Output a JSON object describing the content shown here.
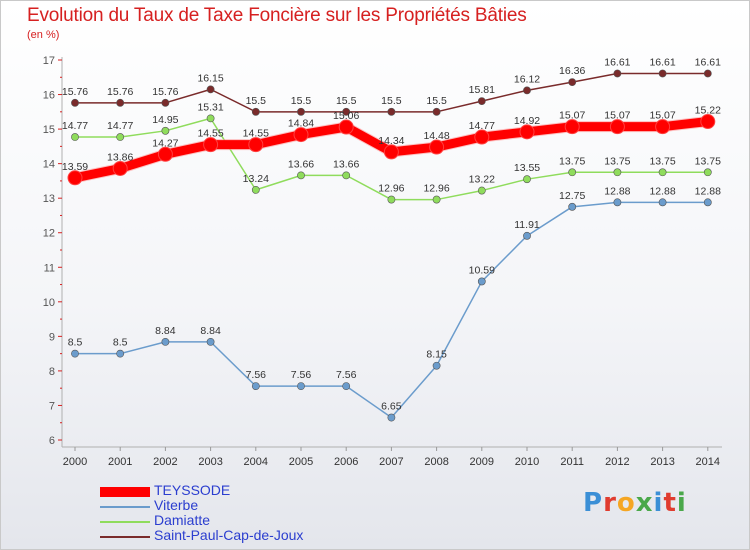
{
  "header": {
    "title": "Evolution du Taux de Taxe Foncière sur les Propriétés Bâties",
    "unit_label": "(en %)"
  },
  "logo": {
    "letters": [
      "P",
      "r",
      "o",
      "x",
      "i",
      "t",
      "i"
    ],
    "colors": [
      "#3b8fd6",
      "#e03c2f",
      "#f5a623",
      "#4aa84a",
      "#3b8fd6",
      "#e03c2f",
      "#4aa84a"
    ]
  },
  "chart_data": {
    "type": "line",
    "x": [
      "2000",
      "2001",
      "2002",
      "2003",
      "2004",
      "2005",
      "2006",
      "2007",
      "2008",
      "2009",
      "2010",
      "2011",
      "2012",
      "2013",
      "2014"
    ],
    "ylim": [
      6,
      17
    ],
    "yticks": [
      6,
      7,
      8,
      9,
      10,
      11,
      12,
      13,
      14,
      15,
      16,
      17
    ],
    "grid": false,
    "legend_placement": "bottom-left",
    "series": [
      {
        "name": "TEYSSODE",
        "color": "#ff0000",
        "values": [
          13.59,
          13.86,
          14.27,
          14.55,
          14.55,
          14.84,
          15.06,
          14.34,
          14.48,
          14.77,
          14.92,
          15.07,
          15.07,
          15.07,
          15.22
        ],
        "labels": [
          "13.59",
          "13.86",
          "14.27",
          "14.55",
          "14.55",
          "14.84",
          "15.06",
          "14.34",
          "14.48",
          "14.77",
          "14.92",
          "15.07",
          "15.07",
          "15.07",
          "15.22"
        ]
      },
      {
        "name": "Viterbe",
        "color": "#6b9ccc",
        "values": [
          8.5,
          8.5,
          8.84,
          8.84,
          7.56,
          7.56,
          7.56,
          6.65,
          8.15,
          10.59,
          11.91,
          12.75,
          12.88,
          12.88,
          12.88
        ],
        "labels": [
          "8.5",
          "8.5",
          "8.84",
          "8.84",
          "7.56",
          "7.56",
          "7.56",
          "6.65",
          "8.15",
          "10.59",
          "11.91",
          "12.75",
          "12.88",
          "12.88",
          "12.88"
        ]
      },
      {
        "name": "Damiatte",
        "color": "#8fdc5c",
        "values": [
          14.77,
          14.77,
          14.95,
          15.31,
          13.24,
          13.66,
          13.66,
          12.96,
          12.96,
          13.22,
          13.55,
          13.75,
          13.75,
          13.75,
          13.75
        ],
        "labels": [
          "14.77",
          "14.77",
          "14.95",
          "15.31",
          "13.24",
          "13.66",
          "13.66",
          "12.96",
          "12.96",
          "13.22",
          "13.55",
          "13.75",
          "13.75",
          "13.75",
          "13.75"
        ]
      },
      {
        "name": "Saint-Paul-Cap-de-Joux",
        "color": "#7a2b2b",
        "values": [
          15.76,
          15.76,
          15.76,
          16.15,
          15.5,
          15.5,
          15.5,
          15.5,
          15.5,
          15.81,
          16.12,
          16.36,
          16.61,
          16.61,
          16.61
        ],
        "labels": [
          "15.76",
          "15.76",
          "15.76",
          "16.15",
          "15.5",
          "15.5",
          "15.5",
          "15.5",
          "15.5",
          "15.81",
          "16.12",
          "16.36",
          "16.61",
          "16.61",
          "16.61"
        ]
      }
    ]
  }
}
